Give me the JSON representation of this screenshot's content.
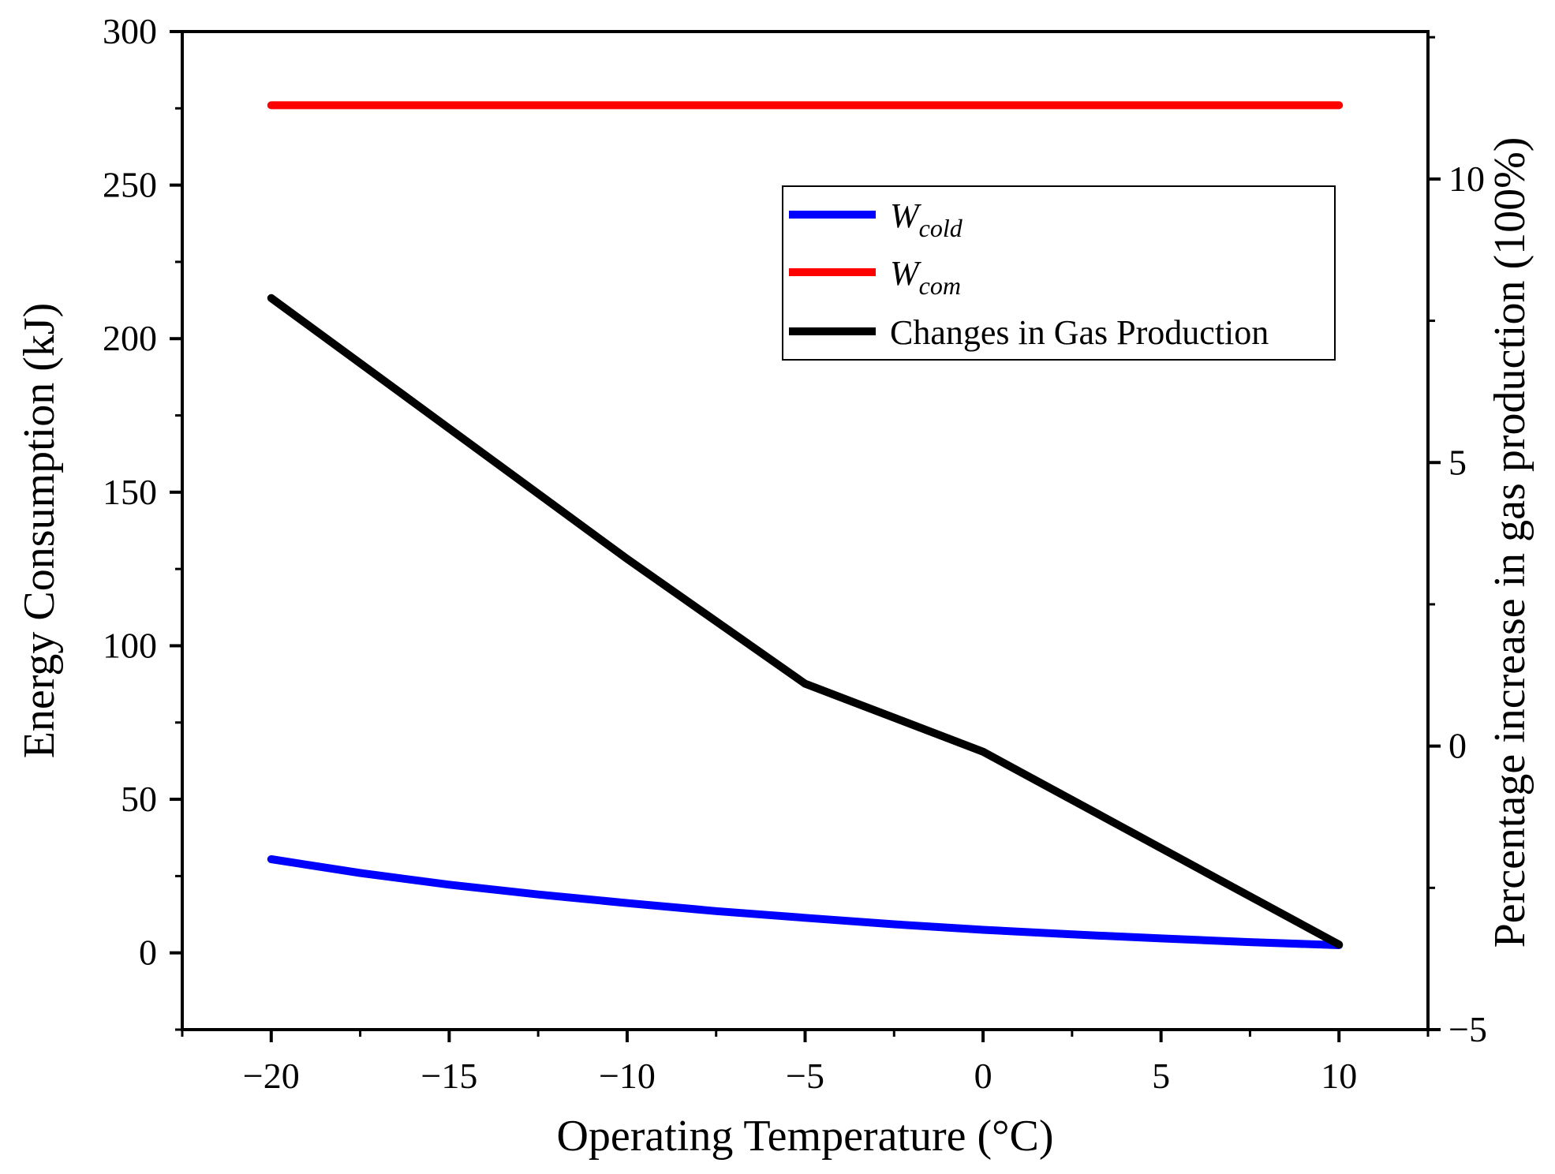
{
  "chart_data": {
    "type": "line",
    "title": "",
    "xlabel": "Operating Temperature (°C)",
    "ylabel": "Energy Consumption (kJ)",
    "y2label": "Percentage increase in gas production (100%)",
    "xlim": [
      -22.5,
      12.5
    ],
    "ylim": [
      -25,
      300
    ],
    "y2lim": [
      -5,
      12.6
    ],
    "x_ticks": [
      -20,
      -15,
      -10,
      -5,
      0,
      5,
      10
    ],
    "x_tick_labels": [
      "−20",
      "−15",
      "−10",
      "−5",
      "0",
      "5",
      "10"
    ],
    "y_ticks": [
      0,
      50,
      100,
      150,
      200,
      250,
      300
    ],
    "y_tick_labels": [
      "0",
      "50",
      "100",
      "150",
      "200",
      "250",
      "300"
    ],
    "y2_ticks": [
      -5,
      0,
      5,
      10
    ],
    "y2_tick_labels": [
      "−5",
      "0",
      "5",
      "10"
    ],
    "grid": false,
    "legend_position": "top-right",
    "legend": [
      {
        "main": "W",
        "sub": "cold",
        "italic": true
      },
      {
        "main": "W",
        "sub": "com",
        "italic": true
      },
      {
        "main": "Changes in Gas Production",
        "sub": "",
        "italic": false
      }
    ],
    "series": [
      {
        "name": "W_cold",
        "axis": "left",
        "color": "#0000ff",
        "x": [
          -20,
          -17.5,
          -15,
          -12.5,
          -10,
          -7.5,
          -5,
          -2.5,
          0,
          2.5,
          5,
          7.5,
          10
        ],
        "values": [
          30.5,
          26.0,
          22.2,
          19.0,
          16.2,
          13.6,
          11.4,
          9.3,
          7.5,
          6.0,
          4.7,
          3.5,
          2.5
        ]
      },
      {
        "name": "W_com",
        "axis": "left",
        "color": "#ff0000",
        "x": [
          -20,
          10
        ],
        "values": [
          276,
          276
        ]
      },
      {
        "name": "Changes in Gas Production",
        "axis": "right",
        "color": "#000000",
        "x": [
          -20,
          -15,
          -10,
          -5,
          0,
          5,
          10
        ],
        "values": [
          7.9,
          5.6,
          3.3,
          1.1,
          -0.1,
          -1.8,
          -3.5
        ]
      }
    ]
  }
}
